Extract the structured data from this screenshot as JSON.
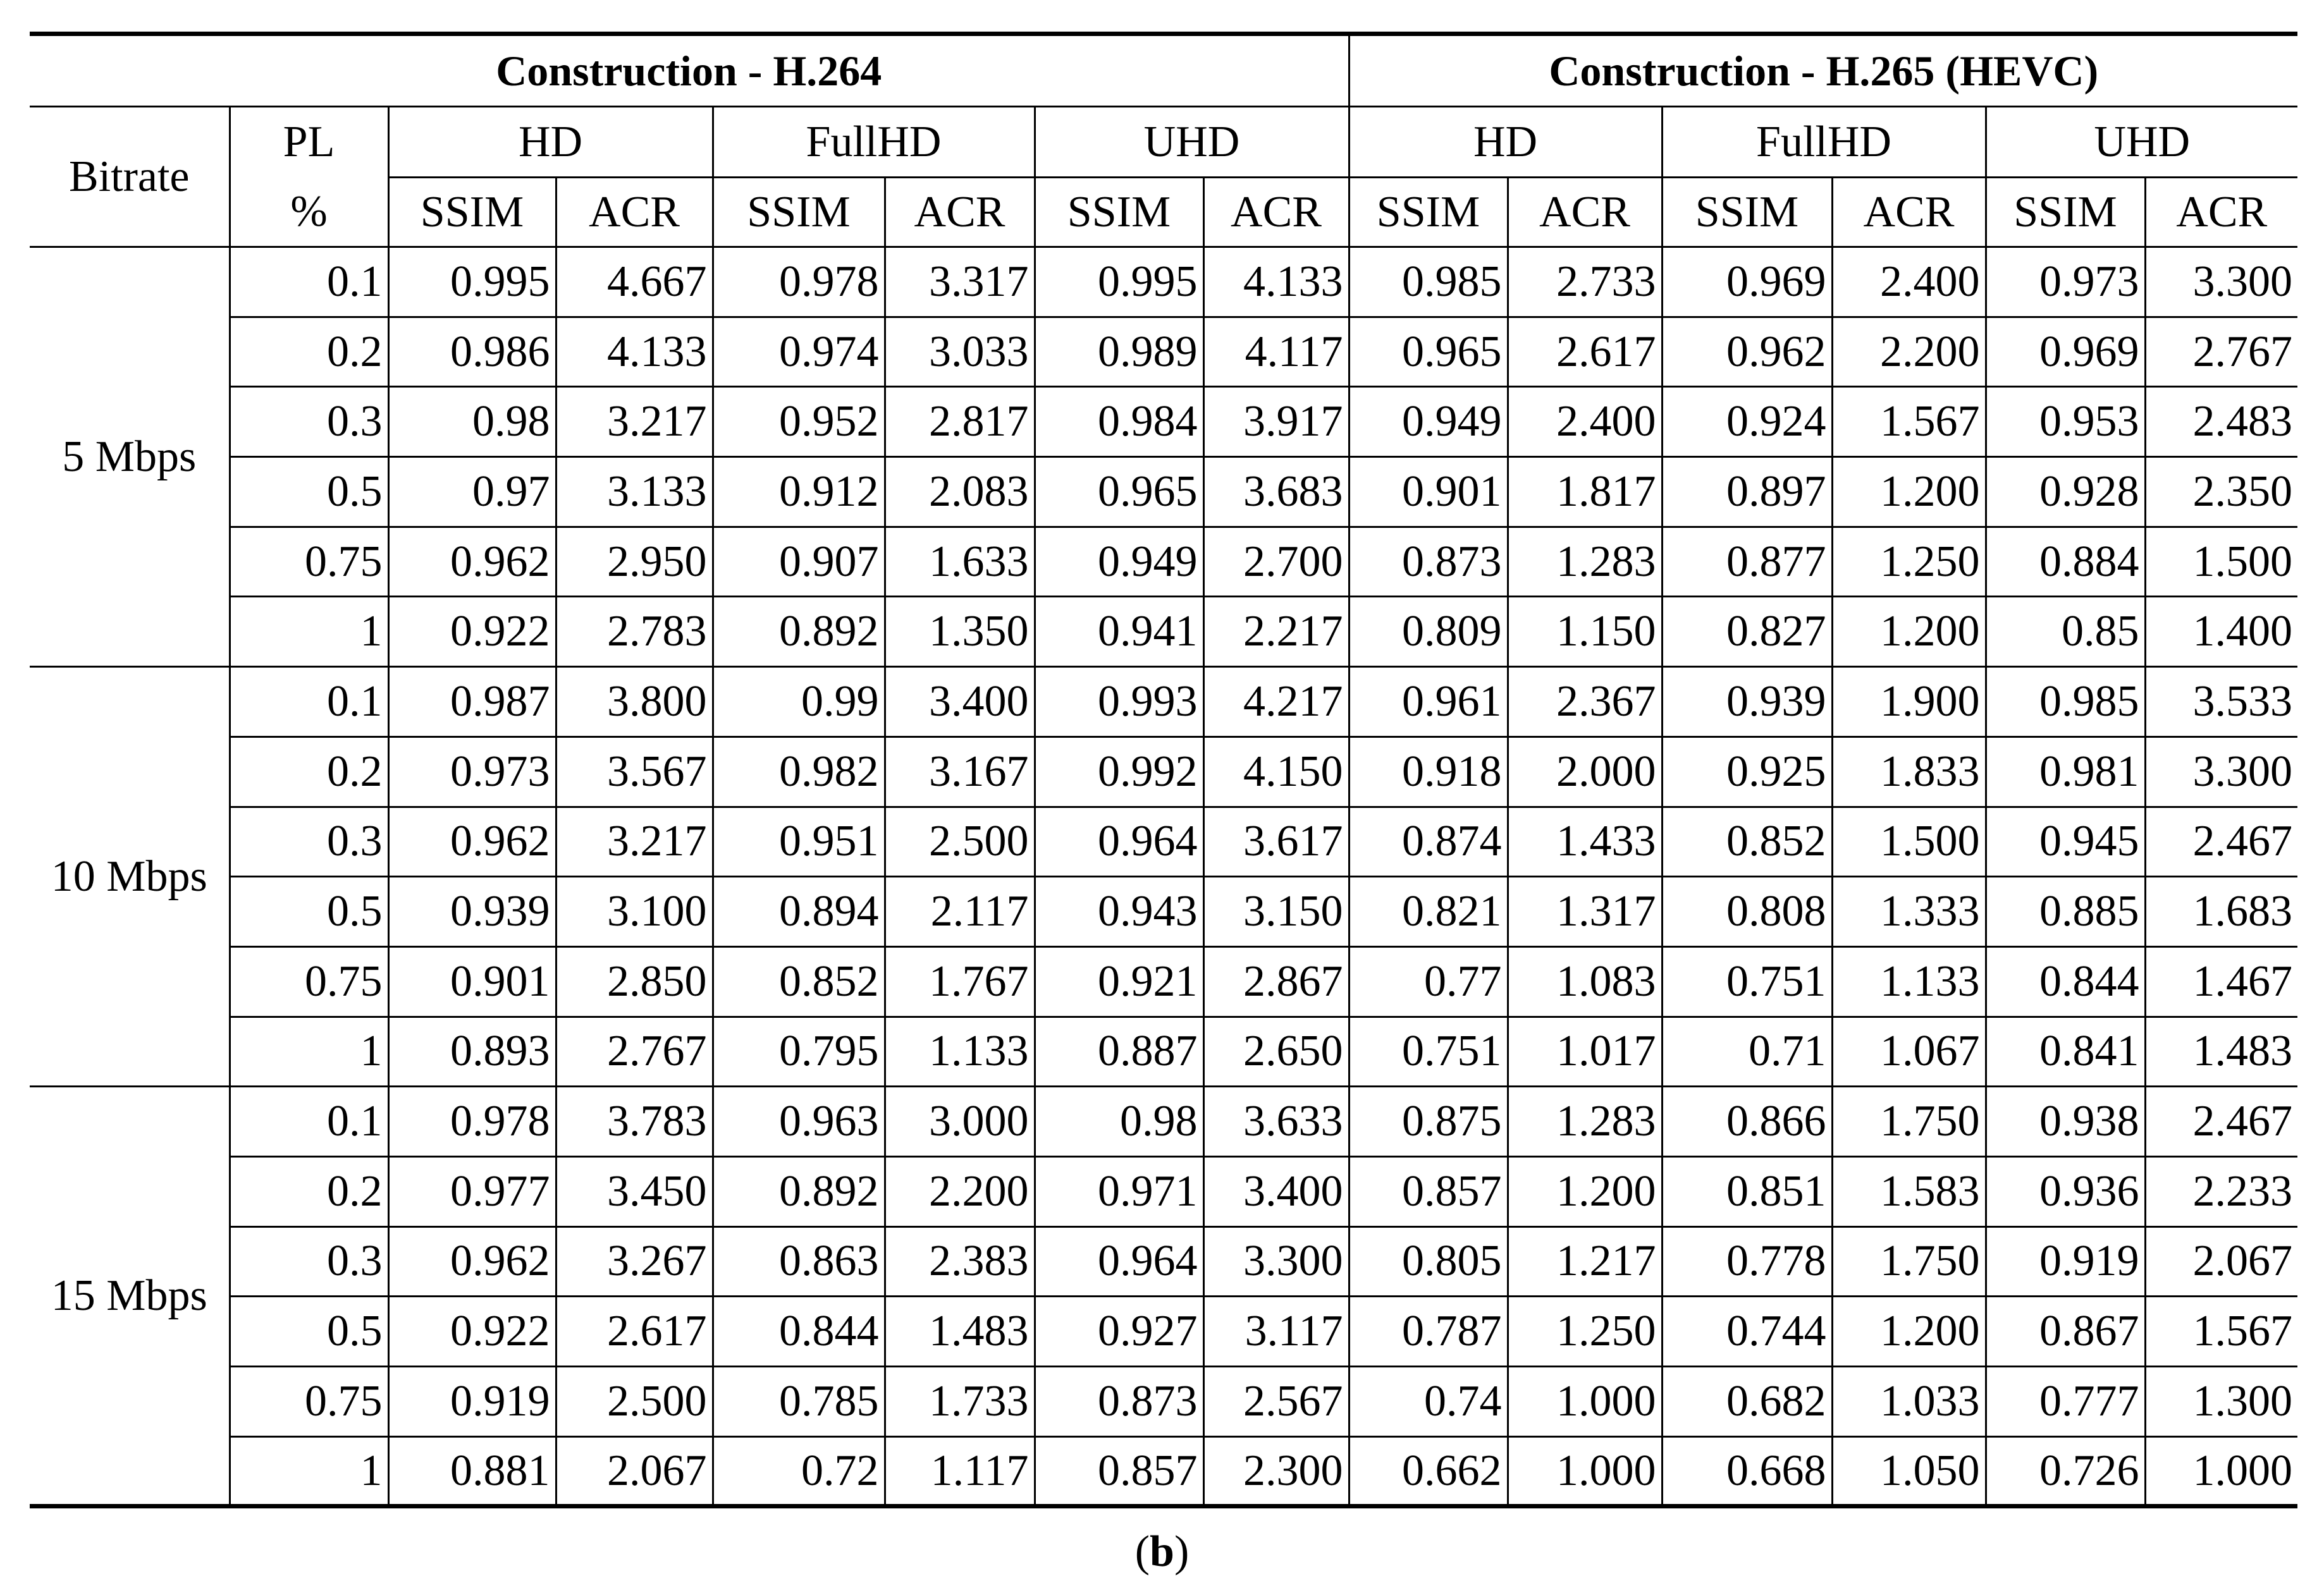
{
  "table": {
    "groups": [
      {
        "title": "Construction - H.264",
        "resolutions": [
          {
            "name": "HD",
            "metrics": [
              "SSIM",
              "ACR"
            ]
          },
          {
            "name": "FullHD",
            "metrics": [
              "SSIM",
              "ACR"
            ]
          },
          {
            "name": "UHD",
            "metrics": [
              "SSIM",
              "ACR"
            ]
          }
        ]
      },
      {
        "title": "Construction - H.265 (HEVC)",
        "resolutions": [
          {
            "name": "HD",
            "metrics": [
              "SSIM",
              "ACR"
            ]
          },
          {
            "name": "FullHD",
            "metrics": [
              "SSIM",
              "ACR"
            ]
          },
          {
            "name": "UHD",
            "metrics": [
              "SSIM",
              "ACR"
            ]
          }
        ]
      }
    ],
    "bitrate_header": "Bitrate",
    "pl_header": [
      "PL",
      "%"
    ],
    "blocks": [
      {
        "bitrate": "5 Mbps",
        "rows": [
          {
            "pl": "0.1",
            "cells": [
              "0.995",
              "4.667",
              "0.978",
              "3.317",
              "0.995",
              "4.133",
              "0.985",
              "2.733",
              "0.969",
              "2.400",
              "0.973",
              "3.300"
            ]
          },
          {
            "pl": "0.2",
            "cells": [
              "0.986",
              "4.133",
              "0.974",
              "3.033",
              "0.989",
              "4.117",
              "0.965",
              "2.617",
              "0.962",
              "2.200",
              "0.969",
              "2.767"
            ]
          },
          {
            "pl": "0.3",
            "cells": [
              "0.98",
              "3.217",
              "0.952",
              "2.817",
              "0.984",
              "3.917",
              "0.949",
              "2.400",
              "0.924",
              "1.567",
              "0.953",
              "2.483"
            ]
          },
          {
            "pl": "0.5",
            "cells": [
              "0.97",
              "3.133",
              "0.912",
              "2.083",
              "0.965",
              "3.683",
              "0.901",
              "1.817",
              "0.897",
              "1.200",
              "0.928",
              "2.350"
            ]
          },
          {
            "pl": "0.75",
            "cells": [
              "0.962",
              "2.950",
              "0.907",
              "1.633",
              "0.949",
              "2.700",
              "0.873",
              "1.283",
              "0.877",
              "1.250",
              "0.884",
              "1.500"
            ]
          },
          {
            "pl": "1",
            "cells": [
              "0.922",
              "2.783",
              "0.892",
              "1.350",
              "0.941",
              "2.217",
              "0.809",
              "1.150",
              "0.827",
              "1.200",
              "0.85",
              "1.400"
            ]
          }
        ]
      },
      {
        "bitrate": "10 Mbps",
        "rows": [
          {
            "pl": "0.1",
            "cells": [
              "0.987",
              "3.800",
              "0.99",
              "3.400",
              "0.993",
              "4.217",
              "0.961",
              "2.367",
              "0.939",
              "1.900",
              "0.985",
              "3.533"
            ]
          },
          {
            "pl": "0.2",
            "cells": [
              "0.973",
              "3.567",
              "0.982",
              "3.167",
              "0.992",
              "4.150",
              "0.918",
              "2.000",
              "0.925",
              "1.833",
              "0.981",
              "3.300"
            ]
          },
          {
            "pl": "0.3",
            "cells": [
              "0.962",
              "3.217",
              "0.951",
              "2.500",
              "0.964",
              "3.617",
              "0.874",
              "1.433",
              "0.852",
              "1.500",
              "0.945",
              "2.467"
            ]
          },
          {
            "pl": "0.5",
            "cells": [
              "0.939",
              "3.100",
              "0.894",
              "2.117",
              "0.943",
              "3.150",
              "0.821",
              "1.317",
              "0.808",
              "1.333",
              "0.885",
              "1.683"
            ]
          },
          {
            "pl": "0.75",
            "cells": [
              "0.901",
              "2.850",
              "0.852",
              "1.767",
              "0.921",
              "2.867",
              "0.77",
              "1.083",
              "0.751",
              "1.133",
              "0.844",
              "1.467"
            ]
          },
          {
            "pl": "1",
            "cells": [
              "0.893",
              "2.767",
              "0.795",
              "1.133",
              "0.887",
              "2.650",
              "0.751",
              "1.017",
              "0.71",
              "1.067",
              "0.841",
              "1.483"
            ]
          }
        ]
      },
      {
        "bitrate": "15 Mbps",
        "rows": [
          {
            "pl": "0.1",
            "cells": [
              "0.978",
              "3.783",
              "0.963",
              "3.000",
              "0.98",
              "3.633",
              "0.875",
              "1.283",
              "0.866",
              "1.750",
              "0.938",
              "2.467"
            ]
          },
          {
            "pl": "0.2",
            "cells": [
              "0.977",
              "3.450",
              "0.892",
              "2.200",
              "0.971",
              "3.400",
              "0.857",
              "1.200",
              "0.851",
              "1.583",
              "0.936",
              "2.233"
            ]
          },
          {
            "pl": "0.3",
            "cells": [
              "0.962",
              "3.267",
              "0.863",
              "2.383",
              "0.964",
              "3.300",
              "0.805",
              "1.217",
              "0.778",
              "1.750",
              "0.919",
              "2.067"
            ]
          },
          {
            "pl": "0.5",
            "cells": [
              "0.922",
              "2.617",
              "0.844",
              "1.483",
              "0.927",
              "3.117",
              "0.787",
              "1.250",
              "0.744",
              "1.200",
              "0.867",
              "1.567"
            ]
          },
          {
            "pl": "0.75",
            "cells": [
              "0.919",
              "2.500",
              "0.785",
              "1.733",
              "0.873",
              "2.567",
              "0.74",
              "1.000",
              "0.682",
              "1.033",
              "0.777",
              "1.300"
            ]
          },
          {
            "pl": "1",
            "cells": [
              "0.881",
              "2.067",
              "0.72",
              "1.117",
              "0.857",
              "2.300",
              "0.662",
              "1.000",
              "0.668",
              "1.050",
              "0.726",
              "1.000"
            ]
          }
        ]
      }
    ]
  },
  "caption": {
    "open": "(",
    "label": "b",
    "close": ")"
  }
}
